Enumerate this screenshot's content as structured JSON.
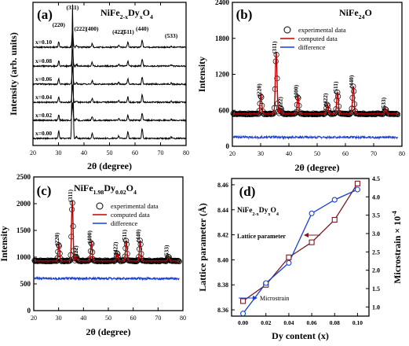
{
  "chart_data": [
    {
      "type": "line",
      "panel": "(a)",
      "title": "NiFe2-xDyxO4",
      "title_parts": {
        "base": "NiFe",
        "sub1": "2-x",
        "mid": "Dy",
        "sub2": "x",
        "end": "O",
        "sub3": "4"
      },
      "xlabel": "2θ (degree)",
      "ylabel": "Intensity (arb. units)",
      "xlim": [
        20,
        80
      ],
      "xticks": [
        20,
        30,
        40,
        50,
        60,
        70,
        80
      ],
      "series": [
        {
          "name": "x=0.10"
        },
        {
          "name": "x=0.08"
        },
        {
          "name": "x=0.06"
        },
        {
          "name": "x=0.04"
        },
        {
          "name": "x=0.02"
        },
        {
          "name": "x=0.00"
        }
      ],
      "peaks": [
        {
          "hkl": "(220)",
          "x": 30.1,
          "h": 0.3
        },
        {
          "hkl": "(311)",
          "x": 35.5,
          "h": 1.0
        },
        {
          "hkl": "(222)",
          "x": 37.1,
          "h": 0.08
        },
        {
          "hkl": "(400)",
          "x": 43.2,
          "h": 0.22
        },
        {
          "hkl": "(422)",
          "x": 53.6,
          "h": 0.1
        },
        {
          "hkl": "(511)",
          "x": 57.2,
          "h": 0.3
        },
        {
          "hkl": "(440)",
          "x": 62.8,
          "h": 0.42
        },
        {
          "hkl": "(533)",
          "x": 74.2,
          "h": 0.06
        }
      ]
    },
    {
      "type": "line",
      "panel": "(b)",
      "title": "NiFe2O4",
      "title_parts": {
        "base": "NiFe",
        "sub1": "2",
        "end": "O",
        "sub2": "4"
      },
      "xlabel": "2θ (degree)",
      "ylabel": "Intensity",
      "xlim": [
        20,
        80
      ],
      "ylim": [
        0,
        2400
      ],
      "xticks": [
        20,
        30,
        40,
        50,
        60,
        70,
        80
      ],
      "yticks": [
        0,
        600,
        1200,
        1800,
        2400
      ],
      "baseline": 540,
      "difference_level": 150,
      "series": [
        {
          "name": "experimental data",
          "color": "#000000"
        },
        {
          "name": "computed data",
          "color": "#c00000"
        },
        {
          "name": "difference",
          "color": "#1a3fd0"
        }
      ],
      "peaks": [
        {
          "hkl": "(220)",
          "x": 30.1,
          "y": 860
        },
        {
          "hkl": "(311)",
          "x": 35.5,
          "y": 1570
        },
        {
          "hkl": "(222)",
          "x": 37.1,
          "y": 640
        },
        {
          "hkl": "(400)",
          "x": 43.2,
          "y": 840
        },
        {
          "hkl": "(422)",
          "x": 53.6,
          "y": 700
        },
        {
          "hkl": "(511)",
          "x": 57.2,
          "y": 900
        },
        {
          "hkl": "(440)",
          "x": 62.8,
          "y": 1000
        },
        {
          "hkl": "(533)",
          "x": 74.2,
          "y": 630
        }
      ]
    },
    {
      "type": "line",
      "panel": "(c)",
      "title": "NiFe1.98Dy0.02O4",
      "title_parts": {
        "base": "NiFe",
        "sub1": "1.98",
        "mid": "Dy",
        "sub2": "0.02",
        "end": "O",
        "sub3": "4"
      },
      "xlabel": "2θ (degree)",
      "ylabel": "Intensity",
      "xlim": [
        20,
        80
      ],
      "ylim": [
        0,
        2500
      ],
      "xticks": [
        20,
        30,
        40,
        50,
        60,
        70,
        80
      ],
      "yticks": [
        0,
        500,
        1000,
        1500,
        2000,
        2500
      ],
      "baseline": 930,
      "difference_level": 600,
      "series": [
        {
          "name": "experimental data",
          "color": "#000000"
        },
        {
          "name": "computed data",
          "color": "#c00000"
        },
        {
          "name": "difference",
          "color": "#1a3fd0"
        }
      ],
      "peaks": [
        {
          "hkl": "(220)",
          "x": 30.1,
          "y": 1250
        },
        {
          "hkl": "(311)",
          "x": 35.5,
          "y": 2060
        },
        {
          "hkl": "(222)",
          "x": 37.1,
          "y": 1010
        },
        {
          "hkl": "(400)",
          "x": 43.2,
          "y": 1290
        },
        {
          "hkl": "(422)",
          "x": 53.6,
          "y": 1080
        },
        {
          "hkl": "(511)",
          "x": 57.2,
          "y": 1310
        },
        {
          "hkl": "(440)",
          "x": 62.8,
          "y": 1310
        },
        {
          "hkl": "(533)",
          "x": 74.2,
          "y": 1020
        }
      ]
    },
    {
      "type": "line",
      "panel": "(d)",
      "title": "NiFe2-xDyxO4",
      "title_parts": {
        "base": "NiFe",
        "sub1": "2-x",
        "mid": "Dy",
        "sub2": "x",
        "end": "O",
        "sub3": "4"
      },
      "xlabel": "Dy content (x)",
      "ylabel": "Lattice parameter (Å)",
      "y2label": "Microstrain × 10",
      "y2label_exp": "-4",
      "xlim": [
        -0.01,
        0.11
      ],
      "ylim": [
        8.355,
        8.465
      ],
      "y2lim": [
        0.75,
        4.5
      ],
      "xticks": [
        "0.00",
        "0.02",
        "0.04",
        "0.06",
        "0.08",
        "0.10"
      ],
      "yticks": [
        "8.36",
        "8.38",
        "8.40",
        "8.42",
        "8.44",
        "8.46"
      ],
      "y2ticks": [
        "1.0",
        "1.5",
        "2.0",
        "2.5",
        "3.0",
        "3.5",
        "4.0",
        "4.5"
      ],
      "x": [
        0.0,
        0.02,
        0.04,
        0.06,
        0.08,
        0.1
      ],
      "series": [
        {
          "name": "Lattice parameter",
          "axis": "left",
          "color": "#7a1a22",
          "values": [
            8.367,
            8.38,
            8.402,
            8.414,
            8.432,
            8.461
          ]
        },
        {
          "name": "Microstrain",
          "axis": "right",
          "color": "#1a3fd0",
          "values": [
            0.82,
            1.65,
            2.2,
            3.55,
            3.92,
            4.2
          ]
        }
      ]
    }
  ]
}
